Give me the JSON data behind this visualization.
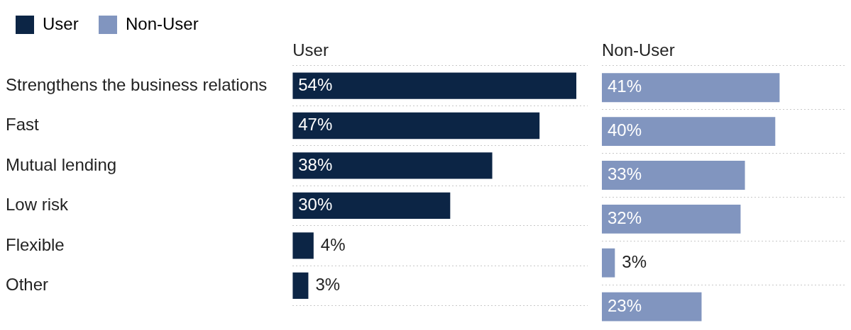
{
  "chart_data": [
    {
      "type": "bar",
      "orientation": "horizontal",
      "legend": "top left",
      "grid": "y",
      "tick_labels": "y",
      "categories": [
        "Strengthens the business relations",
        "Fast",
        "Mutual lending",
        "Low risk",
        "Flexible",
        "Other"
      ],
      "series": [
        {
          "name": "User",
          "color": "#0c2545",
          "values": [
            54,
            47,
            38,
            30,
            4,
            3
          ],
          "value_labels": [
            "54%",
            "47%",
            "38%",
            "30%",
            "4%",
            "3%"
          ]
        }
      ]
    },
    {
      "type": "bar",
      "orientation": "horizontal",
      "legend": "top left",
      "grid": "y",
      "tick_labels": false,
      "categories": [
        null,
        null,
        null,
        null,
        null,
        null
      ],
      "series": [
        {
          "name": "Non-User",
          "color": "#8195bf",
          "values": [
            41,
            40,
            33,
            32,
            3,
            23
          ],
          "value_labels": [
            "41%",
            "40%",
            "33%",
            "32%",
            "3%",
            "23%"
          ]
        }
      ]
    }
  ]
}
